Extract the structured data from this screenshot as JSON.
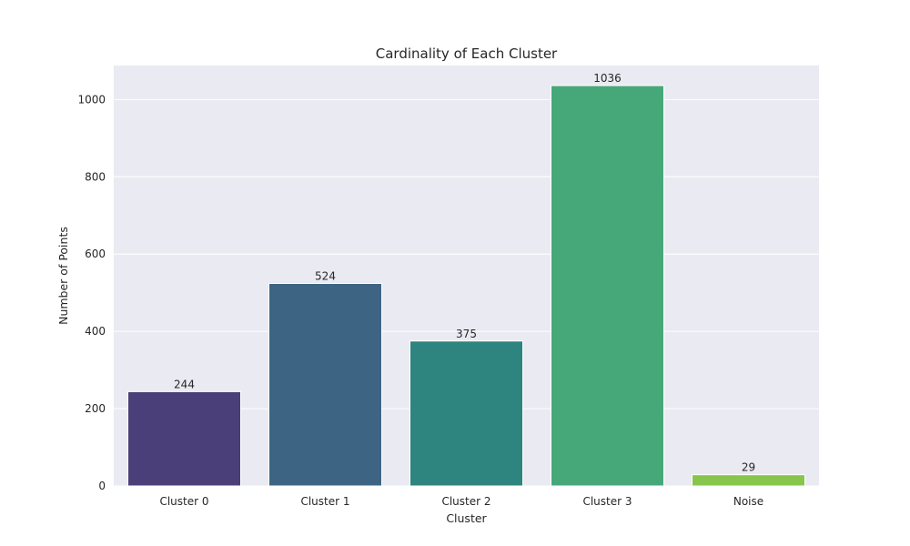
{
  "chart_data": {
    "type": "bar",
    "title": "Cardinality of Each Cluster",
    "xlabel": "Cluster",
    "ylabel": "Number of Points",
    "categories": [
      "Cluster 0",
      "Cluster 1",
      "Cluster 2",
      "Cluster 3",
      "Noise"
    ],
    "values": [
      244,
      524,
      375,
      1036,
      29
    ],
    "data_labels": [
      "244",
      "524",
      "375",
      "1036",
      "29"
    ],
    "colors": [
      "#4a3f78",
      "#3d6583",
      "#2e847e",
      "#46a878",
      "#87c54d"
    ],
    "ylim": [
      0,
      1088
    ],
    "yticks": [
      0,
      200,
      400,
      600,
      800,
      1000
    ],
    "grid": true,
    "background": "#eaeaf2",
    "legend": "none"
  }
}
